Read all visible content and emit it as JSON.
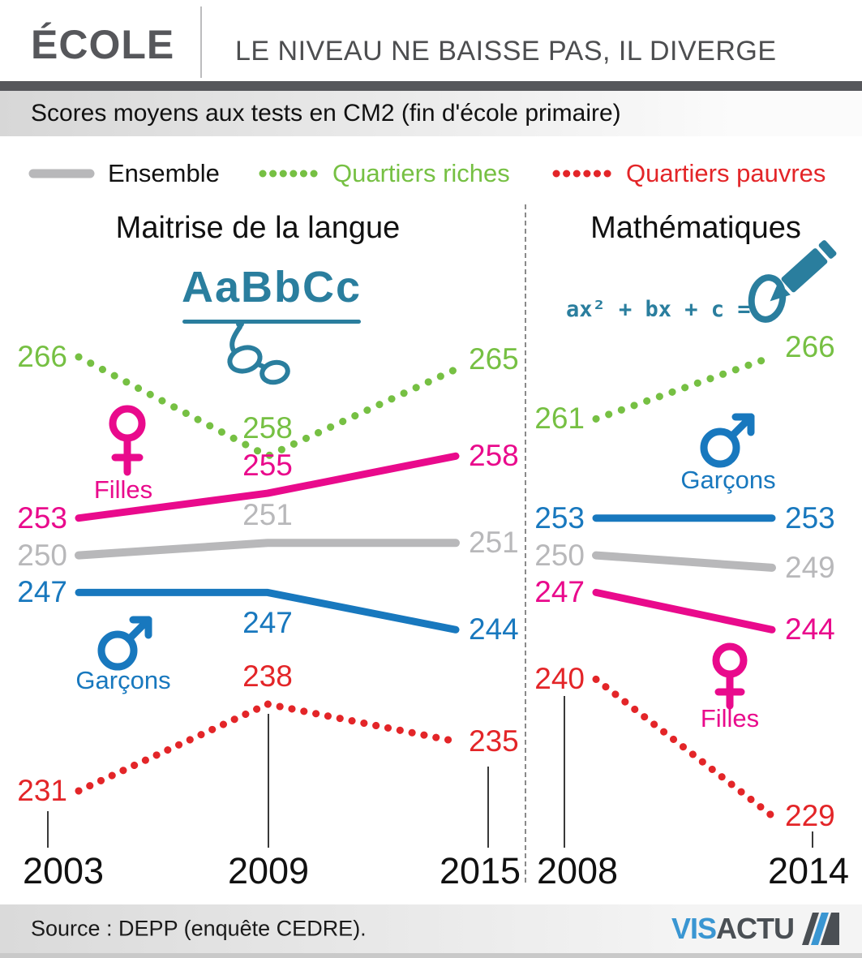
{
  "header": {
    "kicker": "ÉCOLE",
    "title": "LE NIVEAU NE BAISSE PAS, IL DIVERGE",
    "subtitle": "Scores moyens aux tests en CM2 (fin d'école primaire)"
  },
  "colors": {
    "gray": "#b8b8ba",
    "green": "#76c043",
    "red": "#e32528",
    "magenta": "#e90a8c",
    "blue": "#1878be",
    "blue_logo": "#3a96d2",
    "teal": "#2a7e9e",
    "dark": "#56575b"
  },
  "legend": [
    {
      "label": "Ensemble",
      "color": "gray",
      "style": "solid"
    },
    {
      "label": "Quartiers riches",
      "color": "green",
      "style": "dotted"
    },
    {
      "label": "Quartiers pauvres",
      "color": "red",
      "style": "dotted"
    }
  ],
  "decor": {
    "language_sample": "AaBbCc",
    "math_formula": "ax² + bx + c ="
  },
  "chart_data": [
    {
      "type": "line",
      "title": "Maitrise de la langue",
      "x": [
        "2003",
        "2009",
        "2015"
      ],
      "series": [
        {
          "name": "Quartiers riches",
          "color": "green",
          "style": "dotted",
          "values": [
            266,
            258,
            265
          ]
        },
        {
          "name": "Filles",
          "color": "magenta",
          "style": "solid",
          "values": [
            253,
            255,
            258
          ]
        },
        {
          "name": "Ensemble",
          "color": "gray",
          "style": "solid",
          "values": [
            250,
            251,
            251
          ]
        },
        {
          "name": "Garçons",
          "color": "blue",
          "style": "solid",
          "values": [
            247,
            247,
            244
          ]
        },
        {
          "name": "Quartiers pauvres",
          "color": "red",
          "style": "dotted",
          "values": [
            231,
            238,
            235
          ]
        }
      ],
      "annotations": [
        {
          "icon": "female-icon",
          "label": "Filles",
          "color": "magenta"
        },
        {
          "icon": "male-icon",
          "label": "Garçons",
          "color": "blue"
        }
      ],
      "ylim": [
        225,
        270
      ],
      "grid": false
    },
    {
      "type": "line",
      "title": "Mathématiques",
      "x": [
        "2008",
        "2014"
      ],
      "series": [
        {
          "name": "Quartiers riches",
          "color": "green",
          "style": "dotted",
          "values": [
            261,
            266
          ]
        },
        {
          "name": "Garçons",
          "color": "blue",
          "style": "solid",
          "values": [
            253,
            253
          ]
        },
        {
          "name": "Ensemble",
          "color": "gray",
          "style": "solid",
          "values": [
            250,
            249
          ]
        },
        {
          "name": "Filles",
          "color": "magenta",
          "style": "solid",
          "values": [
            247,
            244
          ]
        },
        {
          "name": "Quartiers pauvres",
          "color": "red",
          "style": "dotted",
          "values": [
            240,
            229
          ]
        }
      ],
      "annotations": [
        {
          "icon": "male-icon",
          "label": "Garçons",
          "color": "blue"
        },
        {
          "icon": "female-icon",
          "label": "Filles",
          "color": "magenta"
        }
      ],
      "ylim": [
        225,
        270
      ],
      "grid": false
    }
  ],
  "footer": {
    "source": "Source : DEPP (enquête CEDRE).",
    "brand_vis": "VIS",
    "brand_actu": "ACTU"
  }
}
